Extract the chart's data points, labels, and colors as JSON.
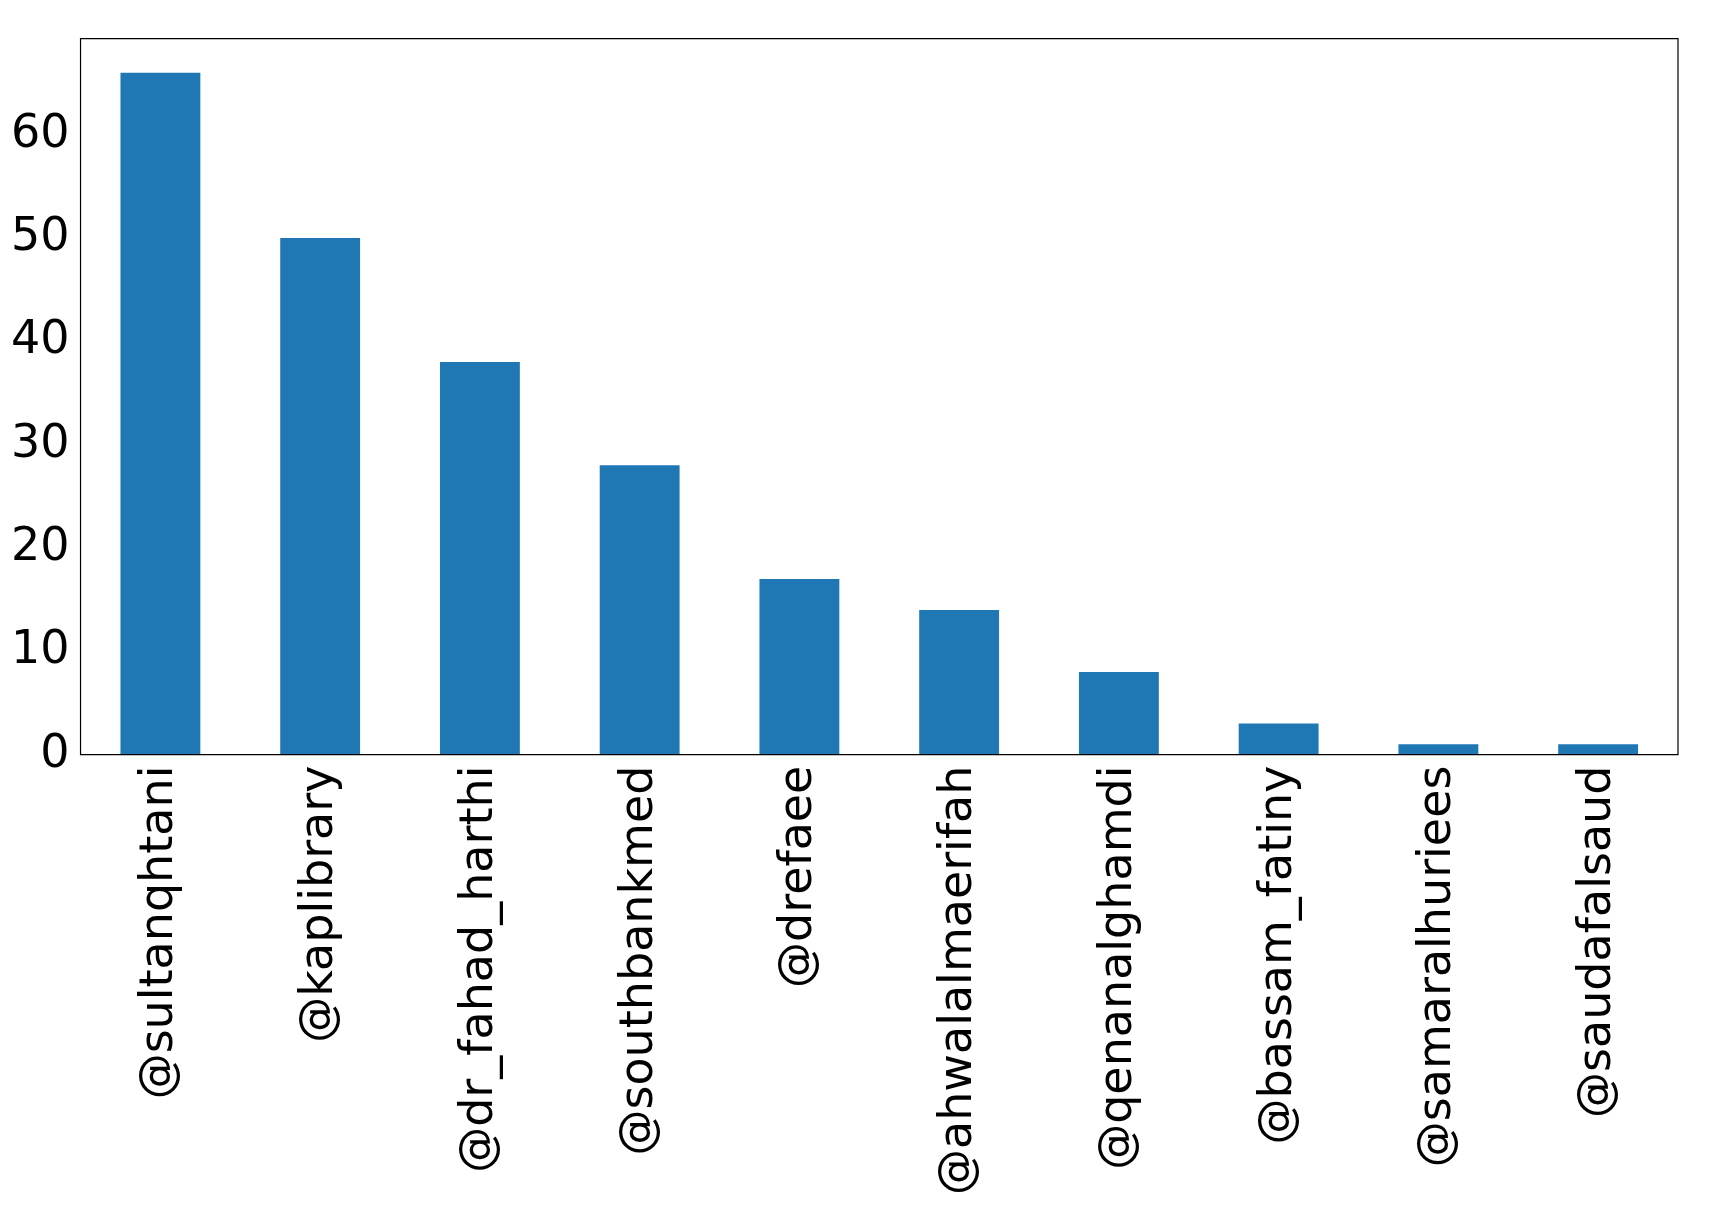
{
  "chart_data": {
    "type": "bar",
    "categories": [
      "@sultanqhtani",
      "@kaplibrary",
      "@dr_fahad_harthi",
      "@southbankmed",
      "@drefaee",
      "@ahwalalmaerifah",
      "@qenanalghamdi",
      "@bassam_fatiny",
      "@samaralhuriees",
      "@saudafalsaud"
    ],
    "values": [
      66,
      50,
      38,
      28,
      17,
      14,
      8,
      3,
      1,
      1
    ],
    "color": "#1f77b4",
    "ylim": [
      0,
      69.3
    ],
    "yticks": [
      0,
      10,
      20,
      30,
      40,
      50,
      60
    ],
    "grid": false,
    "legend": false
  }
}
